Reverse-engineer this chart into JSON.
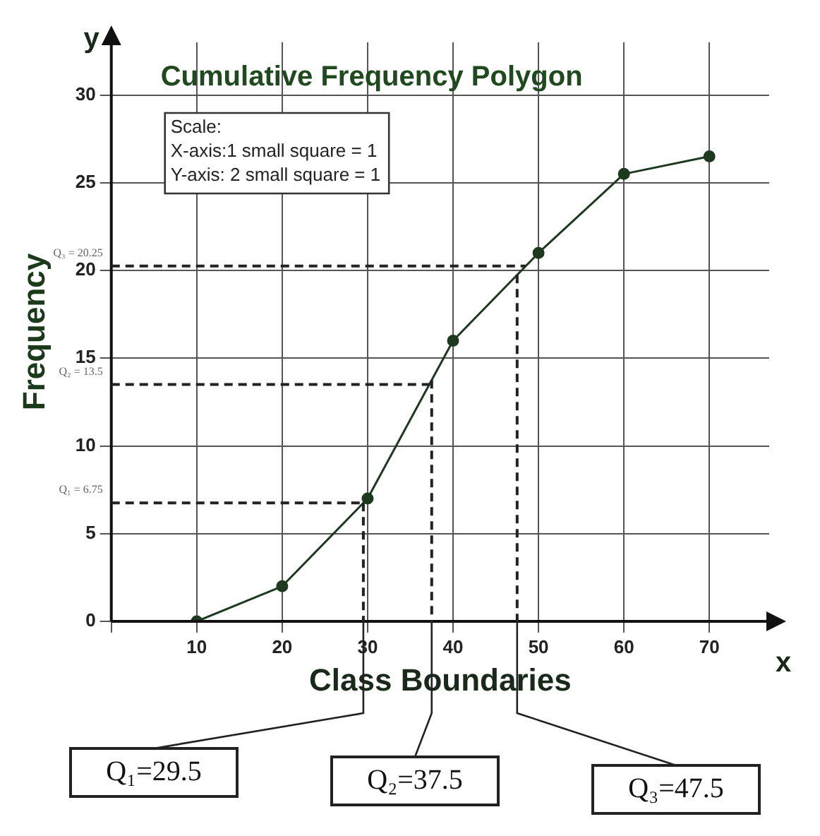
{
  "chart_data": {
    "type": "line",
    "title": "Cumulative Frequency Polygon",
    "xlabel": "Class Boundaries",
    "ylabel": "Frequency",
    "x": [
      10,
      20,
      30,
      40,
      50,
      60,
      70
    ],
    "series": [
      {
        "color": "#1e3a1e",
        "values": [
          0,
          2,
          7,
          16,
          21,
          25.5,
          26.5
        ]
      }
    ],
    "xlim": [
      0,
      77
    ],
    "xticks": [
      {
        "value": 0,
        "label": null
      },
      10,
      20,
      30,
      40,
      50,
      60,
      70
    ],
    "ylim": [
      0,
      33
    ],
    "yticks": [
      0,
      5,
      10,
      15,
      20,
      25,
      30
    ],
    "grid": true,
    "marker": "circle",
    "legend": false,
    "ref_lines": [
      {
        "axis": "x",
        "value": 29.5,
        "label": "Q₁=29.5",
        "line_style": "dashed"
      },
      {
        "axis": "x",
        "value": 37.5,
        "label": "Q₂=37.5",
        "line_style": "dashed"
      },
      {
        "axis": "x",
        "value": 47.5,
        "label": "Q₃=47.5",
        "line_style": "dashed"
      },
      {
        "axis": "y",
        "value": 6.75,
        "label": "Q₁ = 6.75",
        "line_style": "dashed"
      },
      {
        "axis": "y",
        "value": 13.5,
        "label": "Q₂ = 13.5",
        "line_style": "dashed"
      },
      {
        "axis": "y",
        "value": 20.25,
        "label": "Q₃ = 20.25",
        "line_style": "dashed"
      }
    ],
    "annotations": [
      "Scale:\nX-axis:1 small square = 1\nY-axis: 2 small square = 1",
      "x",
      "y"
    ]
  }
}
